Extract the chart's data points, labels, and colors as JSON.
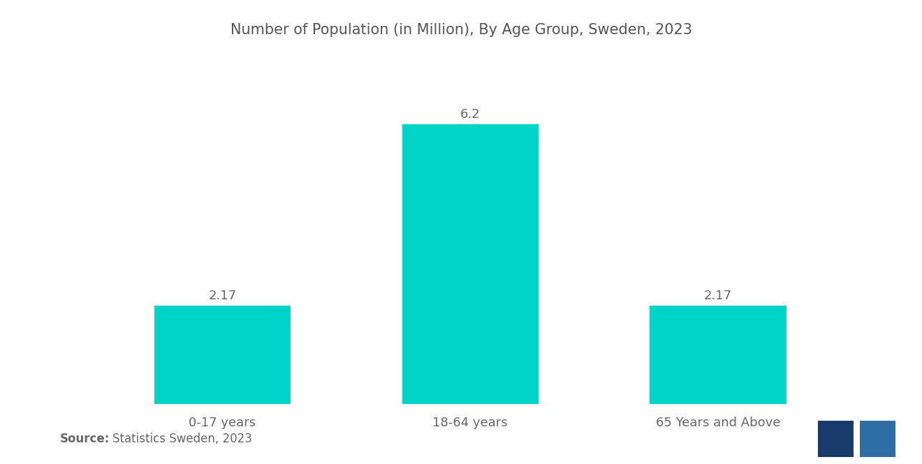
{
  "title": "Number of Population (in Million), By Age Group, Sweden, 2023",
  "categories": [
    "0-17 years",
    "18-64 years",
    "65 Years and Above"
  ],
  "values": [
    2.17,
    6.2,
    2.17
  ],
  "bar_color": "#00D4C8",
  "bar_width": 0.55,
  "value_labels": [
    "2.17",
    "6.2",
    "2.17"
  ],
  "source_bold": "Source:",
  "source_text": "Statistics Sweden, 2023",
  "title_fontsize": 15,
  "label_fontsize": 13,
  "value_fontsize": 13,
  "source_fontsize": 12,
  "background_color": "#ffffff",
  "text_color": "#666666",
  "title_color": "#555555",
  "logo_color1": "#1a3a6b",
  "logo_color2": "#2e6da4"
}
